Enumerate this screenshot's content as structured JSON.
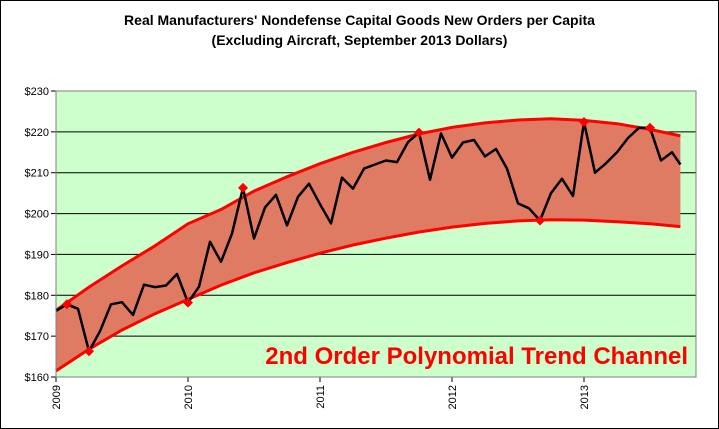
{
  "chart_data": {
    "type": "line",
    "title": "Real Manufacturers' Nondefense Capital Goods New Orders per Capita",
    "subtitle": "(Excluding Aircraft, September 2013 Dollars)",
    "annotation": "2nd Order Polynomial Trend Channel",
    "ylim": [
      160,
      230
    ],
    "y_ticks": [
      160,
      170,
      180,
      190,
      200,
      210,
      220,
      230
    ],
    "y_tick_labels": [
      "$160",
      "$170",
      "$180",
      "$190",
      "$200",
      "$210",
      "$220",
      "$230"
    ],
    "xlim": [
      2009,
      2013.73
    ],
    "x_ticks": [
      2009,
      2010,
      2011,
      2012,
      2013
    ],
    "x_tick_labels": [
      "2009",
      "2010",
      "2011",
      "2012",
      "2013"
    ],
    "grid": true,
    "colors": {
      "plot_background": "#ccffcc",
      "channel_fill": "#e07b63",
      "channel_edge": "#ff0000",
      "series_line": "#000000",
      "marker": "#ff0000",
      "annotation_text": "#ff0000",
      "gridline": "#000000"
    },
    "series": [
      {
        "values": [
          {
            "x": 2009.0,
            "y": 176.2
          },
          {
            "x": 2009.083,
            "y": 177.8
          },
          {
            "x": 2009.167,
            "y": 176.7
          },
          {
            "x": 2009.25,
            "y": 166.3
          },
          {
            "x": 2009.333,
            "y": 171.2
          },
          {
            "x": 2009.417,
            "y": 177.8
          },
          {
            "x": 2009.5,
            "y": 178.3
          },
          {
            "x": 2009.583,
            "y": 175.2
          },
          {
            "x": 2009.667,
            "y": 182.6
          },
          {
            "x": 2009.75,
            "y": 182.0
          },
          {
            "x": 2009.833,
            "y": 182.4
          },
          {
            "x": 2009.917,
            "y": 185.2
          },
          {
            "x": 2010.0,
            "y": 178.2
          },
          {
            "x": 2010.083,
            "y": 182.1
          },
          {
            "x": 2010.167,
            "y": 193.1
          },
          {
            "x": 2010.25,
            "y": 188.2
          },
          {
            "x": 2010.333,
            "y": 195.1
          },
          {
            "x": 2010.417,
            "y": 206.3
          },
          {
            "x": 2010.5,
            "y": 193.9
          },
          {
            "x": 2010.583,
            "y": 201.5
          },
          {
            "x": 2010.667,
            "y": 204.6
          },
          {
            "x": 2010.75,
            "y": 197.1
          },
          {
            "x": 2010.833,
            "y": 204.1
          },
          {
            "x": 2010.917,
            "y": 207.3
          },
          {
            "x": 2011.0,
            "y": 202.3
          },
          {
            "x": 2011.083,
            "y": 197.6
          },
          {
            "x": 2011.167,
            "y": 208.8
          },
          {
            "x": 2011.25,
            "y": 206.1
          },
          {
            "x": 2011.333,
            "y": 211.0
          },
          {
            "x": 2011.417,
            "y": 212.0
          },
          {
            "x": 2011.5,
            "y": 213.0
          },
          {
            "x": 2011.583,
            "y": 212.6
          },
          {
            "x": 2011.667,
            "y": 217.5
          },
          {
            "x": 2011.75,
            "y": 219.8
          },
          {
            "x": 2011.833,
            "y": 208.3
          },
          {
            "x": 2011.917,
            "y": 219.6
          },
          {
            "x": 2012.0,
            "y": 213.7
          },
          {
            "x": 2012.083,
            "y": 217.4
          },
          {
            "x": 2012.167,
            "y": 218.0
          },
          {
            "x": 2012.25,
            "y": 214.0
          },
          {
            "x": 2012.333,
            "y": 215.8
          },
          {
            "x": 2012.417,
            "y": 211.0
          },
          {
            "x": 2012.5,
            "y": 202.5
          },
          {
            "x": 2012.583,
            "y": 201.3
          },
          {
            "x": 2012.667,
            "y": 198.3
          },
          {
            "x": 2012.75,
            "y": 205.0
          },
          {
            "x": 2012.833,
            "y": 208.5
          },
          {
            "x": 2012.917,
            "y": 204.3
          },
          {
            "x": 2013.0,
            "y": 222.4
          },
          {
            "x": 2013.083,
            "y": 210.0
          },
          {
            "x": 2013.167,
            "y": 212.3
          },
          {
            "x": 2013.25,
            "y": 215.0
          },
          {
            "x": 2013.333,
            "y": 218.5
          },
          {
            "x": 2013.417,
            "y": 221.0
          },
          {
            "x": 2013.5,
            "y": 221.0
          },
          {
            "x": 2013.583,
            "y": 213.0
          },
          {
            "x": 2013.667,
            "y": 215.0
          },
          {
            "x": 2013.73,
            "y": 212.0
          }
        ]
      }
    ],
    "channel": {
      "upper": [
        {
          "x": 2009.0,
          "y": 176.3
        },
        {
          "x": 2009.25,
          "y": 182.0
        },
        {
          "x": 2009.5,
          "y": 187.2
        },
        {
          "x": 2009.75,
          "y": 192.1
        },
        {
          "x": 2010.0,
          "y": 197.5
        },
        {
          "x": 2010.25,
          "y": 201.0
        },
        {
          "x": 2010.5,
          "y": 205.5
        },
        {
          "x": 2010.75,
          "y": 209.0
        },
        {
          "x": 2011.0,
          "y": 212.2
        },
        {
          "x": 2011.25,
          "y": 215.0
        },
        {
          "x": 2011.5,
          "y": 217.4
        },
        {
          "x": 2011.75,
          "y": 219.5
        },
        {
          "x": 2012.0,
          "y": 221.1
        },
        {
          "x": 2012.25,
          "y": 222.2
        },
        {
          "x": 2012.5,
          "y": 222.9
        },
        {
          "x": 2012.75,
          "y": 223.2
        },
        {
          "x": 2013.0,
          "y": 222.8
        },
        {
          "x": 2013.25,
          "y": 222.0
        },
        {
          "x": 2013.5,
          "y": 220.6
        },
        {
          "x": 2013.73,
          "y": 219.0
        }
      ],
      "lower": [
        {
          "x": 2009.0,
          "y": 161.5
        },
        {
          "x": 2009.25,
          "y": 166.8
        },
        {
          "x": 2009.5,
          "y": 171.5
        },
        {
          "x": 2009.75,
          "y": 175.5
        },
        {
          "x": 2010.0,
          "y": 179.0
        },
        {
          "x": 2010.25,
          "y": 182.5
        },
        {
          "x": 2010.5,
          "y": 185.5
        },
        {
          "x": 2010.75,
          "y": 188.0
        },
        {
          "x": 2011.0,
          "y": 190.3
        },
        {
          "x": 2011.25,
          "y": 192.3
        },
        {
          "x": 2011.5,
          "y": 194.0
        },
        {
          "x": 2011.75,
          "y": 195.5
        },
        {
          "x": 2012.0,
          "y": 196.7
        },
        {
          "x": 2012.25,
          "y": 197.6
        },
        {
          "x": 2012.5,
          "y": 198.2
        },
        {
          "x": 2012.75,
          "y": 198.5
        },
        {
          "x": 2013.0,
          "y": 198.4
        },
        {
          "x": 2013.25,
          "y": 198.0
        },
        {
          "x": 2013.5,
          "y": 197.5
        },
        {
          "x": 2013.73,
          "y": 196.8
        }
      ]
    },
    "highlighted_points": [
      {
        "x": 2009.083,
        "y": 177.8
      },
      {
        "x": 2009.25,
        "y": 166.3
      },
      {
        "x": 2010.0,
        "y": 178.2
      },
      {
        "x": 2010.417,
        "y": 206.3
      },
      {
        "x": 2011.75,
        "y": 219.8
      },
      {
        "x": 2012.667,
        "y": 198.3
      },
      {
        "x": 2013.0,
        "y": 222.4
      },
      {
        "x": 2013.5,
        "y": 221.0
      }
    ]
  }
}
